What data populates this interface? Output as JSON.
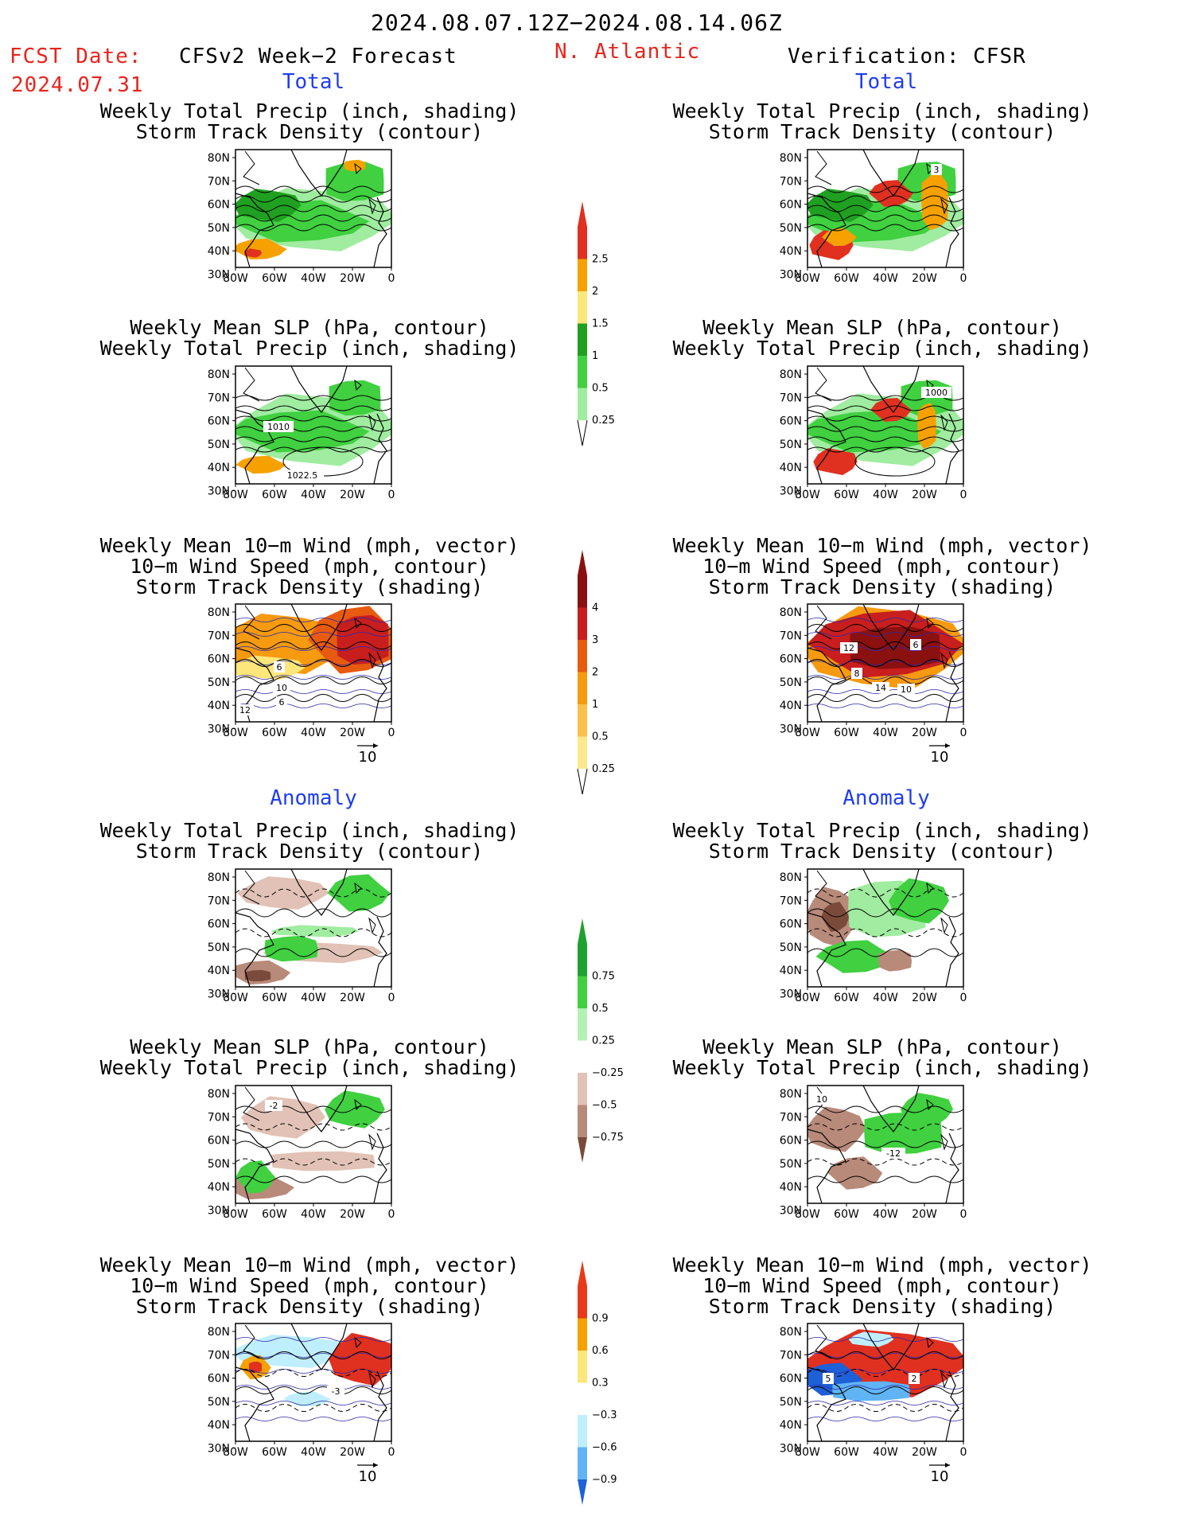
{
  "header": {
    "period": "2024.08.07.12Z−2024.08.14.06Z",
    "fcst_label": "FCST Date:",
    "fcst_date": "2024.07.31",
    "forecast_title": "CFSv2 Week−2 Forecast",
    "region": "N. Atlantic",
    "verification": "Verification: CFSR"
  },
  "sections": {
    "total": "Total",
    "anomaly": "Anomaly"
  },
  "panel_titles": {
    "precip_track": [
      "Weekly Total Precip (inch, shading)",
      "Storm Track Density (contour)"
    ],
    "slp_precip": [
      "Weekly Mean SLP (hPa, contour)",
      "Weekly Total Precip (inch, shading)"
    ],
    "wind_track": [
      "Weekly Mean 10−m Wind (mph, vector)",
      "10−m Wind Speed (mph, contour)",
      "Storm Track Density (shading)"
    ]
  },
  "axes": {
    "lat_ticks": [
      "80N",
      "70N",
      "60N",
      "50N",
      "40N",
      "30N"
    ],
    "lon_ticks": [
      "80W",
      "60W",
      "40W",
      "20W",
      "0"
    ],
    "vector_ref": "10"
  },
  "contour_labels": {
    "fcst_slp": [
      "1010",
      "1022.5"
    ],
    "obs_slp": [
      "1000"
    ],
    "obs_track": [
      "3"
    ],
    "fcst_wind": [
      "6",
      "10",
      "6",
      "12"
    ],
    "obs_wind": [
      "12",
      "6",
      "8",
      "14",
      "10"
    ],
    "fcst_anom_slp": [
      "-2"
    ],
    "obs_anom_slp": [
      "10",
      "-12"
    ],
    "fcst_anom_wind": [
      "-3"
    ],
    "obs_anom_wind": [
      "5",
      "2"
    ]
  },
  "colorbars": {
    "precip_total": {
      "labels": [
        "2.5",
        "2",
        "1.5",
        "1",
        "0.5",
        "0.25"
      ],
      "colors": [
        "#e03020",
        "#f6a100",
        "#fde67a",
        "#20a020",
        "#40d040",
        "#a0eca0"
      ]
    },
    "track_total": {
      "labels": [
        "4",
        "3",
        "2",
        "1",
        "0.5",
        "0.25"
      ],
      "colors": [
        "#8b1010",
        "#c81e1e",
        "#e85a10",
        "#f69a10",
        "#fbbf4c",
        "#fde98c"
      ]
    },
    "precip_anom": {
      "labels": [
        "0.75",
        "0.5",
        "0.25",
        "−0.25",
        "−0.5",
        "−0.75"
      ],
      "colors": [
        "#20a030",
        "#40d040",
        "#b4f0b4",
        "#ffffff",
        "#e2c2b6",
        "#b88a7a",
        "#7a4a3a"
      ]
    },
    "track_anom": {
      "labels": [
        "0.9",
        "0.6",
        "0.3",
        "−0.3",
        "−0.6",
        "−0.9"
      ],
      "colors": [
        "#e83a1a",
        "#f6a100",
        "#fde67a",
        "#ffffff",
        "#bfeefe",
        "#60b4f6",
        "#1e60d8"
      ]
    }
  }
}
